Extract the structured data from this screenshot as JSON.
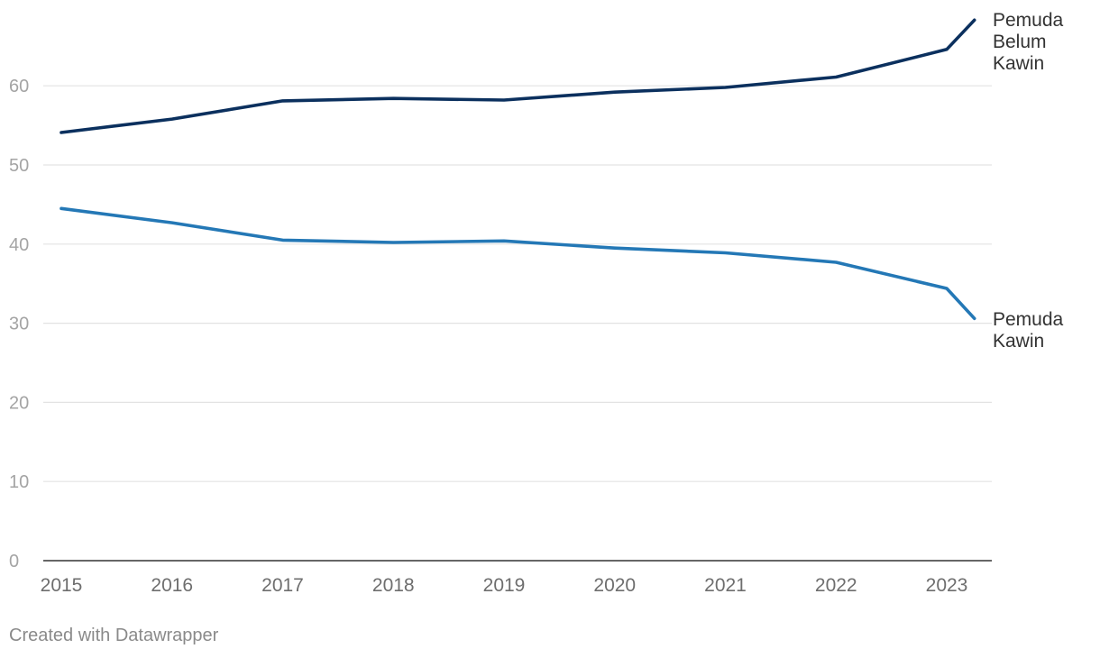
{
  "chart_data": {
    "type": "line",
    "x": [
      "2015",
      "2016",
      "2017",
      "2018",
      "2019",
      "2020",
      "2021",
      "2022",
      "2023",
      "2023.25"
    ],
    "x_tick_labels": [
      "2015",
      "2016",
      "2017",
      "2018",
      "2019",
      "2020",
      "2021",
      "2022",
      "2023"
    ],
    "y_ticks": [
      0,
      10,
      20,
      30,
      40,
      50,
      60
    ],
    "ylim": [
      0,
      69
    ],
    "grid": true,
    "legend": "direct labels at line ends",
    "series": [
      {
        "name": "Pemuda Belum Kawin",
        "label_lines": [
          "Pemuda",
          "Belum",
          "Kawin"
        ],
        "color": "#0b305e",
        "values": [
          54.1,
          55.8,
          58.1,
          58.4,
          58.2,
          59.2,
          59.8,
          61.1,
          64.6,
          68.3
        ]
      },
      {
        "name": "Pemuda Kawin",
        "label_lines": [
          "Pemuda",
          "Kawin"
        ],
        "color": "#2478b6",
        "values": [
          44.5,
          42.7,
          40.5,
          40.2,
          40.4,
          39.5,
          38.9,
          37.7,
          34.4,
          30.6
        ]
      }
    ],
    "title": "",
    "xlabel": "",
    "ylabel": ""
  },
  "footer": {
    "credit": "Created with Datawrapper"
  },
  "colors": {
    "gridline": "#e3e3e3",
    "baseline": "#333333"
  }
}
